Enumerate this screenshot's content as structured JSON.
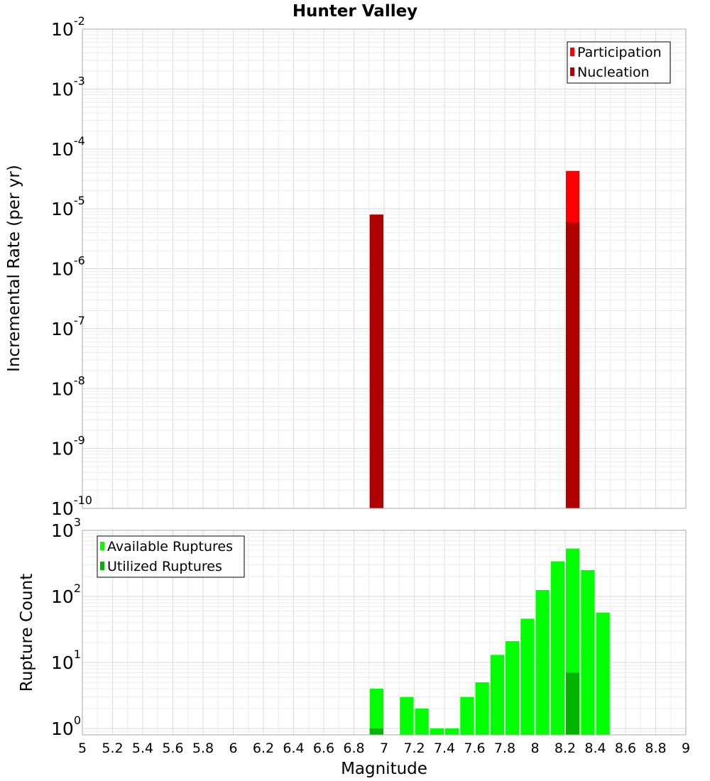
{
  "chart_data": [
    {
      "type": "bar",
      "title": "Hunter Valley",
      "xlabel": "",
      "ylabel": "Incremental Rate (per yr)",
      "y_scale": "log",
      "ylim": [
        1e-10,
        0.01
      ],
      "xlim": [
        5,
        9
      ],
      "grid": true,
      "legend_position": "top-right",
      "y_ticks": [
        {
          "base": "10",
          "exp": "-10",
          "value": 1e-10
        },
        {
          "base": "10",
          "exp": "-9",
          "value": 1e-09
        },
        {
          "base": "10",
          "exp": "-8",
          "value": 1e-08
        },
        {
          "base": "10",
          "exp": "-7",
          "value": 1e-07
        },
        {
          "base": "10",
          "exp": "-6",
          "value": 1e-06
        },
        {
          "base": "10",
          "exp": "-5",
          "value": 1e-05
        },
        {
          "base": "10",
          "exp": "-4",
          "value": 0.0001
        },
        {
          "base": "10",
          "exp": "-3",
          "value": 0.001
        },
        {
          "base": "10",
          "exp": "-2",
          "value": 0.01
        }
      ],
      "bin_width": 0.1,
      "series": [
        {
          "name": "Participation",
          "color": "#ff0000",
          "points": [
            {
              "x": 6.95,
              "y": 8e-06
            },
            {
              "x": 8.25,
              "y": 4.3e-05
            }
          ]
        },
        {
          "name": "Nucleation",
          "color": "#b00000",
          "points": [
            {
              "x": 6.95,
              "y": 8e-06
            },
            {
              "x": 8.25,
              "y": 6e-06
            }
          ]
        }
      ]
    },
    {
      "type": "bar",
      "xlabel": "Magnitude",
      "ylabel": "Rupture Count",
      "y_scale": "log",
      "ylim": [
        0.8,
        1000
      ],
      "xlim": [
        5,
        9
      ],
      "grid": true,
      "legend_position": "top-left",
      "y_ticks": [
        {
          "base": "10",
          "exp": "0",
          "value": 1
        },
        {
          "base": "10",
          "exp": "1",
          "value": 10
        },
        {
          "base": "10",
          "exp": "2",
          "value": 100
        },
        {
          "base": "10",
          "exp": "3",
          "value": 1000
        }
      ],
      "x_ticks": [
        "5",
        "5.2",
        "5.4",
        "5.6",
        "5.8",
        "6",
        "6.2",
        "6.4",
        "6.6",
        "6.8",
        "7",
        "7.2",
        "7.4",
        "7.6",
        "7.8",
        "8",
        "8.2",
        "8.4",
        "8.6",
        "8.8",
        "9"
      ],
      "bin_width": 0.1,
      "series": [
        {
          "name": "Available Ruptures",
          "color": "#00ff00",
          "points": [
            {
              "x": 6.95,
              "y": 4
            },
            {
              "x": 7.15,
              "y": 3
            },
            {
              "x": 7.25,
              "y": 2
            },
            {
              "x": 7.35,
              "y": 1
            },
            {
              "x": 7.45,
              "y": 1
            },
            {
              "x": 7.55,
              "y": 3
            },
            {
              "x": 7.65,
              "y": 5
            },
            {
              "x": 7.75,
              "y": 13
            },
            {
              "x": 7.85,
              "y": 21
            },
            {
              "x": 7.95,
              "y": 46
            },
            {
              "x": 8.05,
              "y": 125
            },
            {
              "x": 8.15,
              "y": 340
            },
            {
              "x": 8.25,
              "y": 530
            },
            {
              "x": 8.35,
              "y": 250
            },
            {
              "x": 8.45,
              "y": 57
            }
          ]
        },
        {
          "name": "Utilized Ruptures",
          "color": "#00b400",
          "points": [
            {
              "x": 6.95,
              "y": 1
            },
            {
              "x": 8.25,
              "y": 7
            }
          ]
        }
      ]
    }
  ]
}
